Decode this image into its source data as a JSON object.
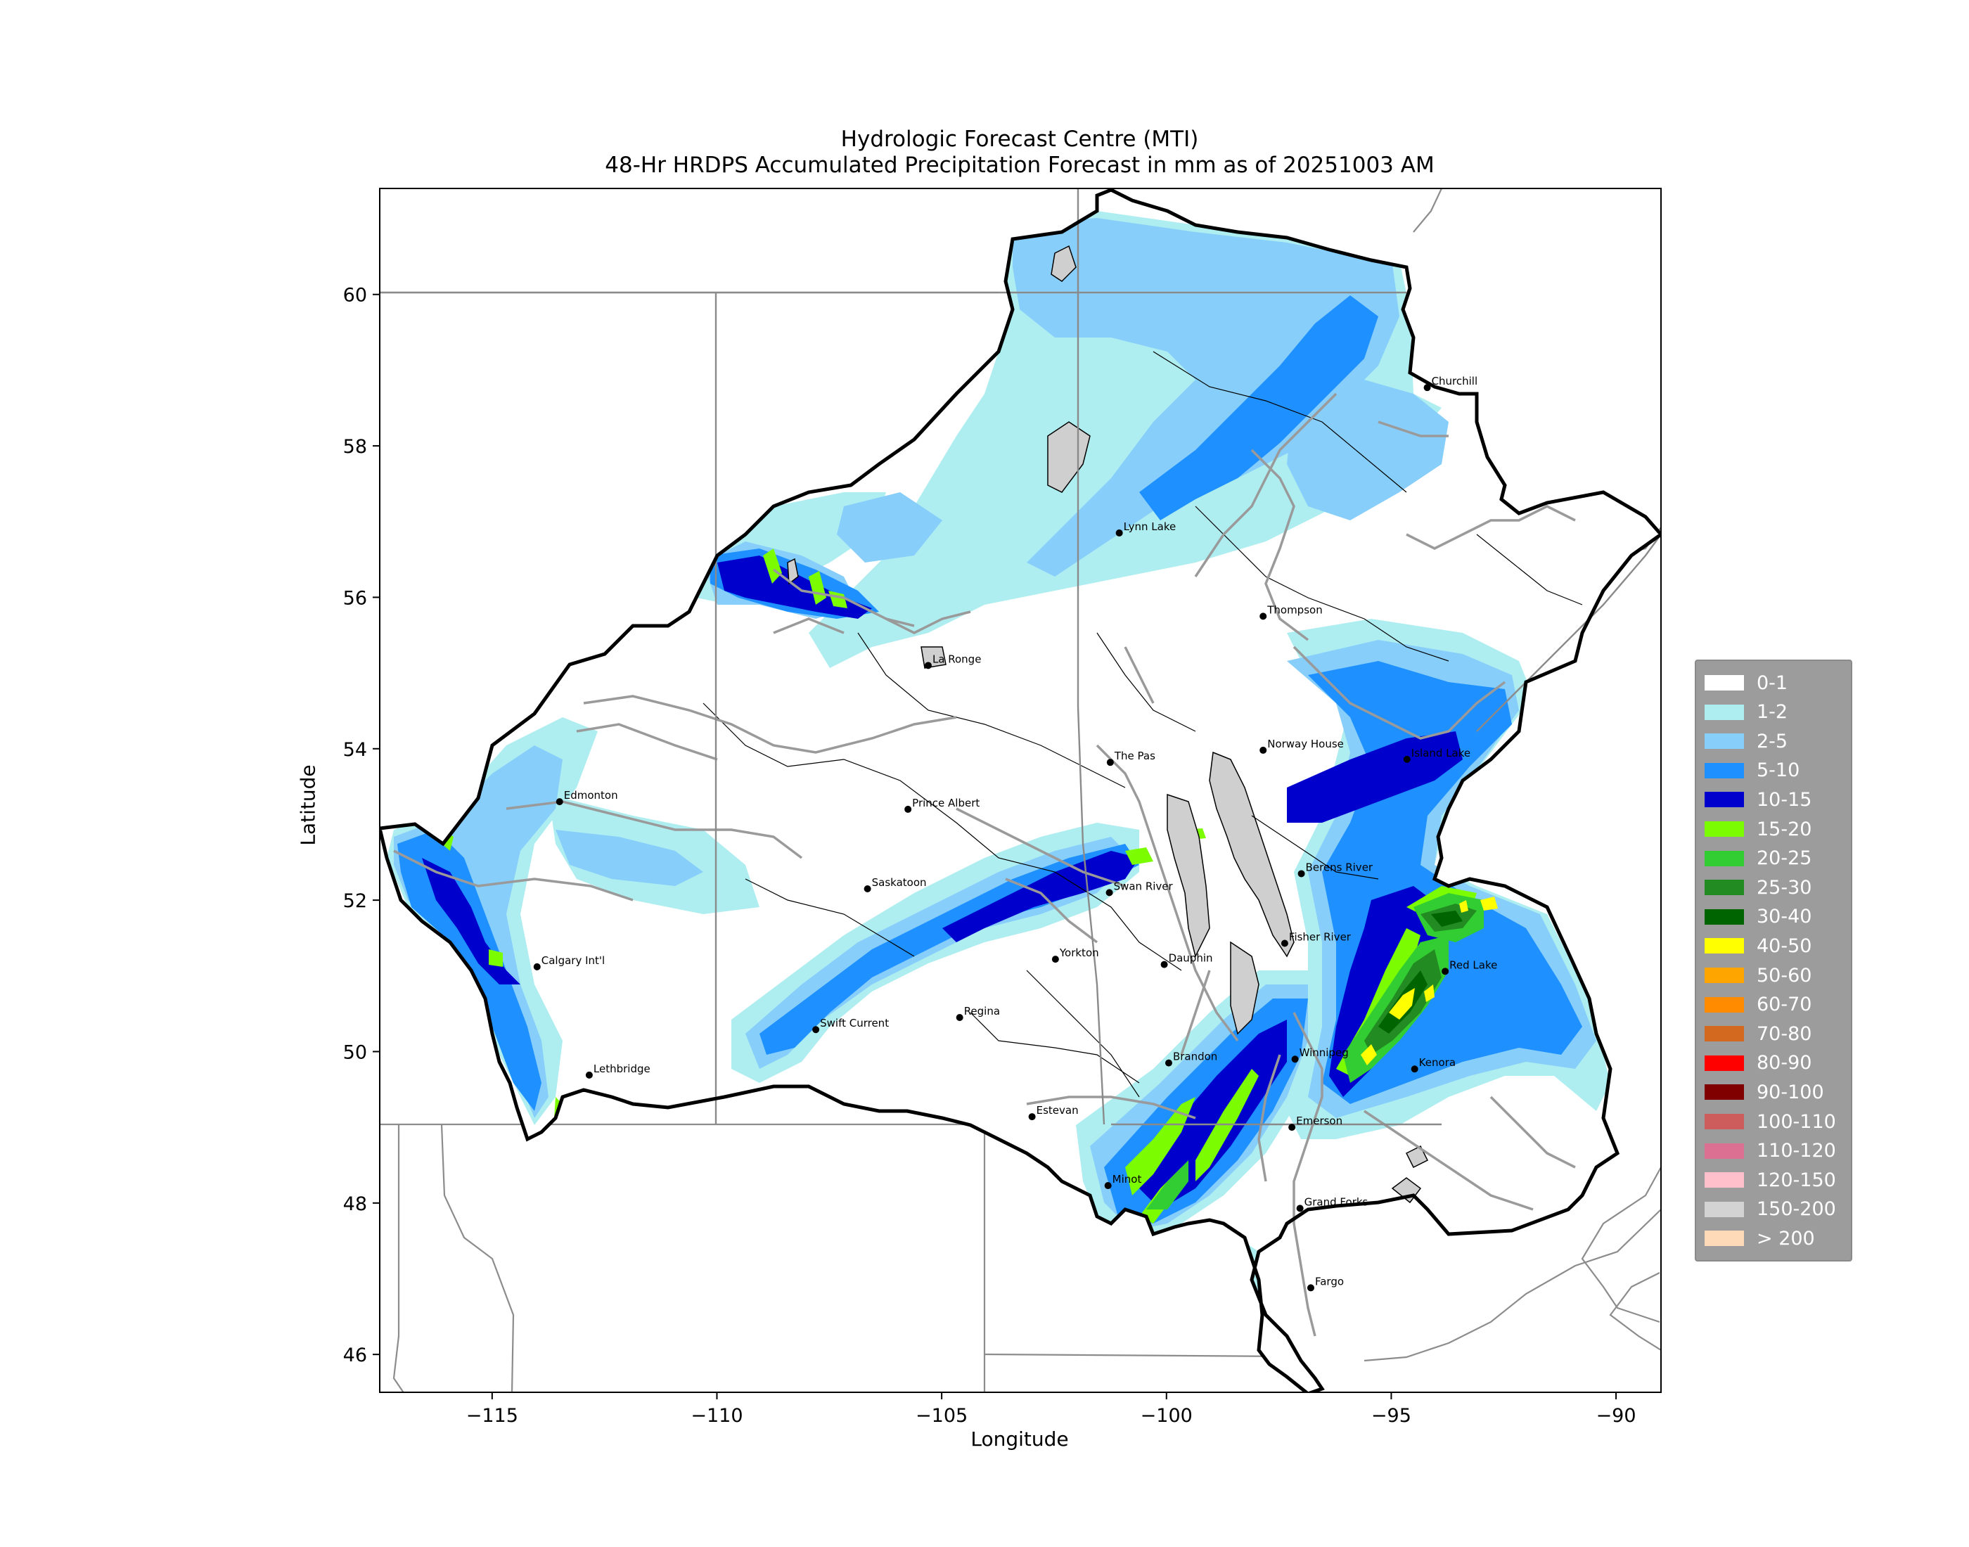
{
  "title": {
    "line1": "Hydrologic Forecast Centre (MTI)",
    "line2": "48-Hr HRDPS Accumulated Precipitation Forecast in mm as of 20251003 AM"
  },
  "axes": {
    "xlabel": "Longitude",
    "ylabel": "Latitude",
    "x_range": [
      -117.5,
      -89
    ],
    "y_range": [
      45.5,
      61.4
    ],
    "x_ticks": [
      {
        "value": -115,
        "label": "−115"
      },
      {
        "value": -110,
        "label": "−110"
      },
      {
        "value": -105,
        "label": "−105"
      },
      {
        "value": -100,
        "label": "−100"
      },
      {
        "value": -95,
        "label": "−95"
      },
      {
        "value": -90,
        "label": "−90"
      }
    ],
    "y_ticks": [
      {
        "value": 46,
        "label": "46"
      },
      {
        "value": 48,
        "label": "48"
      },
      {
        "value": 50,
        "label": "50"
      },
      {
        "value": 52,
        "label": "52"
      },
      {
        "value": 54,
        "label": "54"
      },
      {
        "value": 56,
        "label": "56"
      },
      {
        "value": 58,
        "label": "58"
      },
      {
        "value": 60,
        "label": "60"
      }
    ]
  },
  "legend": [
    {
      "label": "0-1",
      "color": "#ffffff"
    },
    {
      "label": "1-2",
      "color": "#aeeef0"
    },
    {
      "label": "2-5",
      "color": "#87cefa"
    },
    {
      "label": "5-10",
      "color": "#1e90ff"
    },
    {
      "label": "10-15",
      "color": "#0000cd"
    },
    {
      "label": "15-20",
      "color": "#7cfc00"
    },
    {
      "label": "20-25",
      "color": "#32cd32"
    },
    {
      "label": "25-30",
      "color": "#228b22"
    },
    {
      "label": "30-40",
      "color": "#006400"
    },
    {
      "label": "40-50",
      "color": "#ffff00"
    },
    {
      "label": "50-60",
      "color": "#ffa500"
    },
    {
      "label": "60-70",
      "color": "#ff8c00"
    },
    {
      "label": "70-80",
      "color": "#d2691e"
    },
    {
      "label": "80-90",
      "color": "#ff0000"
    },
    {
      "label": "90-100",
      "color": "#800000"
    },
    {
      "label": "100-110",
      "color": "#cd5c5c"
    },
    {
      "label": "110-120",
      "color": "#db7093"
    },
    {
      "label": "120-150",
      "color": "#ffc0cb"
    },
    {
      "label": "150-200",
      "color": "#d3d3d3"
    },
    {
      "label": "> 200",
      "color": "#ffdab9"
    }
  ],
  "cities": [
    {
      "name": "Churchill",
      "lon": -94.2,
      "lat": 58.77
    },
    {
      "name": "Lynn Lake",
      "lon": -101.05,
      "lat": 56.85
    },
    {
      "name": "Thompson",
      "lon": -97.85,
      "lat": 55.75
    },
    {
      "name": "La Ronge",
      "lon": -105.3,
      "lat": 55.1
    },
    {
      "name": "Norway House",
      "lon": -97.85,
      "lat": 53.98
    },
    {
      "name": "The Pas",
      "lon": -101.25,
      "lat": 53.82
    },
    {
      "name": "Island Lake",
      "lon": -94.65,
      "lat": 53.86
    },
    {
      "name": "Edmonton",
      "lon": -113.5,
      "lat": 53.3
    },
    {
      "name": "Prince Albert",
      "lon": -105.75,
      "lat": 53.2
    },
    {
      "name": "Saskatoon",
      "lon": -106.65,
      "lat": 52.15
    },
    {
      "name": "Swan River",
      "lon": -101.27,
      "lat": 52.1
    },
    {
      "name": "Berens River",
      "lon": -97.0,
      "lat": 52.35
    },
    {
      "name": "Fisher River",
      "lon": -97.37,
      "lat": 51.43
    },
    {
      "name": "Calgary Int'l",
      "lon": -114.0,
      "lat": 51.12
    },
    {
      "name": "Yorkton",
      "lon": -102.47,
      "lat": 51.22
    },
    {
      "name": "Dauphin",
      "lon": -100.05,
      "lat": 51.15
    },
    {
      "name": "Red Lake",
      "lon": -93.8,
      "lat": 51.06
    },
    {
      "name": "Swift Current",
      "lon": -107.8,
      "lat": 50.29
    },
    {
      "name": "Regina",
      "lon": -104.6,
      "lat": 50.45
    },
    {
      "name": "Brandon",
      "lon": -99.95,
      "lat": 49.85
    },
    {
      "name": "Winnipeg",
      "lon": -97.14,
      "lat": 49.9
    },
    {
      "name": "Kenora",
      "lon": -94.48,
      "lat": 49.77
    },
    {
      "name": "Lethbridge",
      "lon": -112.84,
      "lat": 49.69
    },
    {
      "name": "Estevan",
      "lon": -102.99,
      "lat": 49.14
    },
    {
      "name": "Emerson",
      "lon": -97.21,
      "lat": 49.0
    },
    {
      "name": "Minot",
      "lon": -101.3,
      "lat": 48.23
    },
    {
      "name": "Grand Forks",
      "lon": -97.03,
      "lat": 47.93
    },
    {
      "name": "Fargo",
      "lon": -96.79,
      "lat": 46.88
    }
  ]
}
